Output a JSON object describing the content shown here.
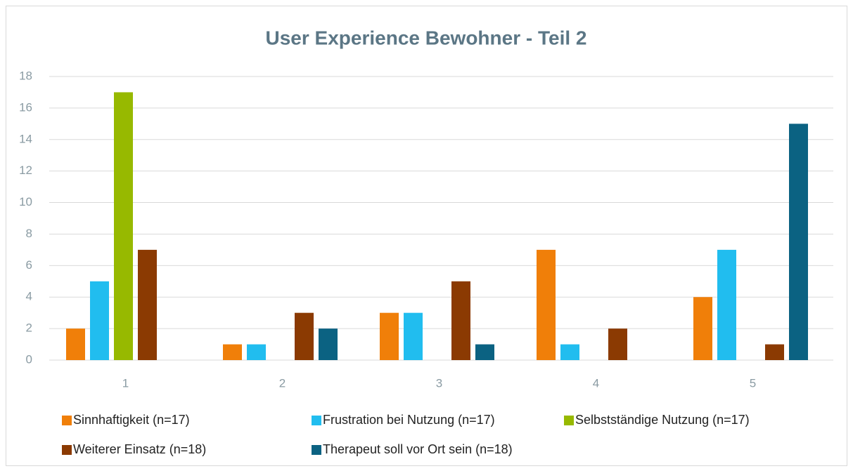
{
  "chart_data": {
    "type": "bar",
    "title": "User Experience Bewohner - Teil 2",
    "categories": [
      "1",
      "2",
      "3",
      "4",
      "5"
    ],
    "series": [
      {
        "name": "Sinnhaftigkeit (n=17)",
        "color": "#f07f09",
        "values": [
          2,
          1,
          3,
          7,
          4
        ]
      },
      {
        "name": "Frustration bei Nutzung (n=17)",
        "color": "#21bdef",
        "values": [
          5,
          1,
          3,
          1,
          7
        ]
      },
      {
        "name": "Selbstständige Nutzung (n=17)",
        "color": "#97b900",
        "values": [
          17,
          0,
          0,
          0,
          0
        ]
      },
      {
        "name": "Weiterer Einsatz (n=18)",
        "color": "#8b3a02",
        "values": [
          7,
          3,
          5,
          2,
          1
        ]
      },
      {
        "name": "Therapeut soll vor Ort sein (n=18)",
        "color": "#0b6282",
        "values": [
          0,
          2,
          1,
          0,
          15
        ]
      }
    ],
    "ylim": [
      0,
      18
    ],
    "yticks": [
      0,
      2,
      4,
      6,
      8,
      10,
      12,
      14,
      16,
      18
    ],
    "grid": true,
    "legend": "bottom"
  }
}
